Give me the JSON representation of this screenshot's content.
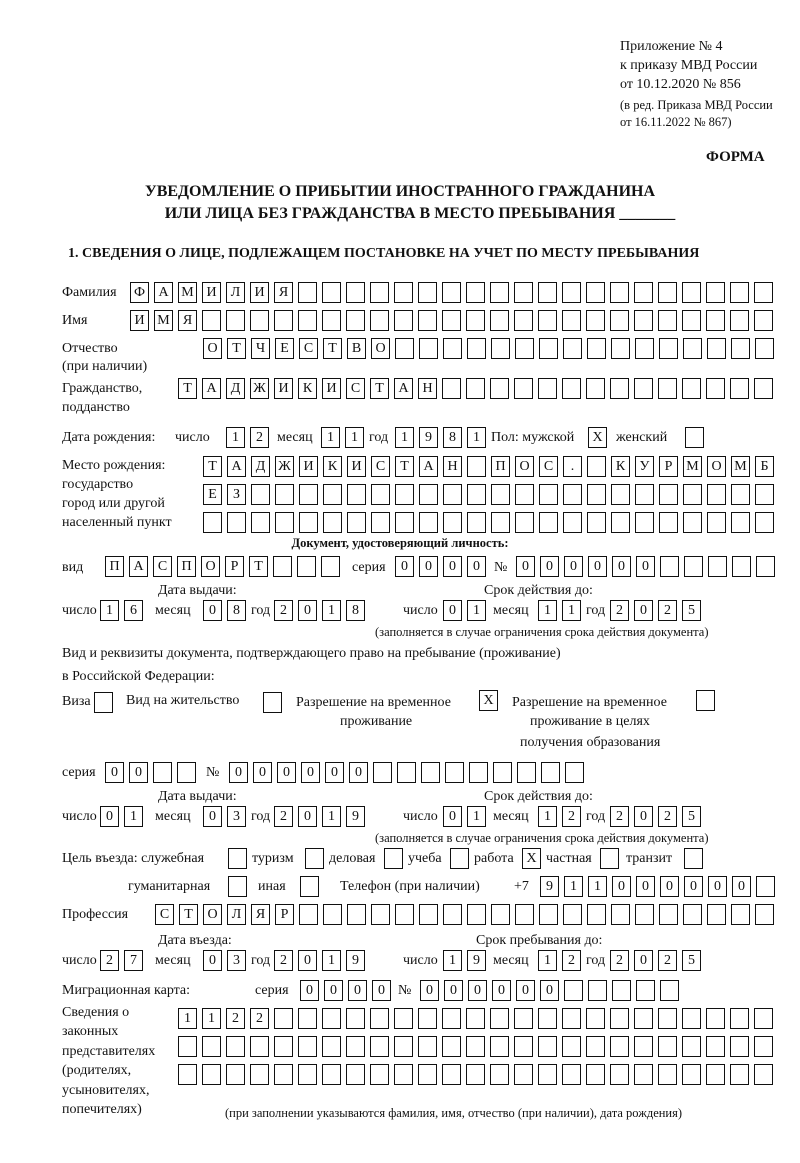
{
  "header": {
    "appendix": [
      "Приложение № 4",
      "к приказу МВД России",
      "от 10.12.2020 № 856"
    ],
    "edition": [
      "(в ред. Приказа МВД России",
      "от 16.11.2022 № 867)"
    ],
    "form_label": "ФОРМА",
    "title_line1": "УВЕДОМЛЕНИЕ О ПРИБЫТИИ ИНОСТРАННОГО ГРАЖДАНИНА",
    "title_line2": "ИЛИ ЛИЦА БЕЗ ГРАЖДАНСТВА В МЕСТО ПРЕБЫВАНИЯ _______",
    "section1": "1. СВЕДЕНИЯ О ЛИЦЕ, ПОДЛЕЖАЩЕМ ПОСТАНОВКЕ НА УЧЕТ ПО МЕСТУ ПРЕБЫВАНИЯ"
  },
  "labels": {
    "surname": "Фамилия",
    "name": "Имя",
    "patronymic": "Отчество",
    "patronymic2": "(при наличии)",
    "citizenship": "Гражданство,",
    "citizenship2": "подданство",
    "birth_date": "Дата рождения:",
    "day": "число",
    "month": "месяц",
    "year": "год",
    "sex": "Пол: мужской",
    "female": "женский",
    "birth_place": [
      "Место рождения:",
      "государство",
      "город или другой",
      "населенный пункт"
    ],
    "id_doc": "Документ, удостоверяющий личность:",
    "kind": "вид",
    "series": "серия",
    "number": "№",
    "issue_date": "Дата выдачи:",
    "valid_until": "Срок действия до:",
    "validity_note": "(заполняется в случае ограничения срока действия документа)",
    "stay_doc1": "Вид и реквизиты документа, подтверждающего право на пребывание (проживание)",
    "stay_doc2": "в Российской Федерации:",
    "visa": "Виза",
    "residence": "Вид на жительство",
    "trp": [
      "Разрешение на временное",
      "проживание"
    ],
    "trp_edu": [
      "Разрешение на временное",
      "проживание в целях",
      "получения образования"
    ],
    "purpose": "Цель въезда: служебная",
    "tourism": "туризм",
    "business": "деловая",
    "study": "учеба",
    "work": "работа",
    "private": "частная",
    "transit": "транзит",
    "humanitarian": "гуманитарная",
    "other": "иная",
    "phone": "Телефон (при наличии)",
    "phone_prefix": "+7",
    "profession": "Профессия",
    "entry_date": "Дата въезда:",
    "stay_until": "Срок пребывания до:",
    "migration_card": "Миграционная карта:",
    "reps": [
      "Сведения о",
      "законных",
      "представителях",
      "(родителях,",
      "усыновителях,",
      "попечителях)"
    ],
    "reps_note": "(при заполнении указываются фамилия, имя, отчество (при наличии), дата рождения)"
  },
  "values": {
    "surname": "ФАМИЛИЯ",
    "name": "ИМЯ",
    "patronymic": "ОТЧЕСТВО",
    "citizenship": "ТАДЖИКИСТАН",
    "birth_day": "12",
    "birth_month": "11",
    "birth_year": "1981",
    "sex_male": "X",
    "sex_female": "",
    "birth_place": [
      "ТАДЖИКИСТАН ПОС. КУРМОМБ",
      "ЕЗ",
      ""
    ],
    "doc_kind": "ПАСПОРТ",
    "doc_series": "0000",
    "doc_number": "000000",
    "doc_issue": {
      "day": "16",
      "month": "08",
      "year": "2018"
    },
    "doc_valid": {
      "day": "01",
      "month": "11",
      "year": "2025"
    },
    "visa": "",
    "residence": "",
    "trp": "X",
    "trp_edu": "",
    "stay_series": "00",
    "stay_number": "000000",
    "stay_issue": {
      "day": "01",
      "month": "03",
      "year": "2019"
    },
    "stay_valid": {
      "day": "01",
      "month": "12",
      "year": "2025"
    },
    "purpose": {
      "official": "",
      "tourism": "",
      "business": "",
      "study": "",
      "work": "X",
      "private": "",
      "transit": "",
      "humanitarian": "",
      "other": ""
    },
    "phone": "911000000",
    "profession": "СТОЛЯР",
    "entry": {
      "day": "27",
      "month": "03",
      "year": "2019"
    },
    "stay_until": {
      "day": "19",
      "month": "12",
      "year": "2025"
    },
    "mig_series": "0000",
    "mig_number": "000000",
    "reps": [
      "1122",
      "",
      ""
    ]
  }
}
